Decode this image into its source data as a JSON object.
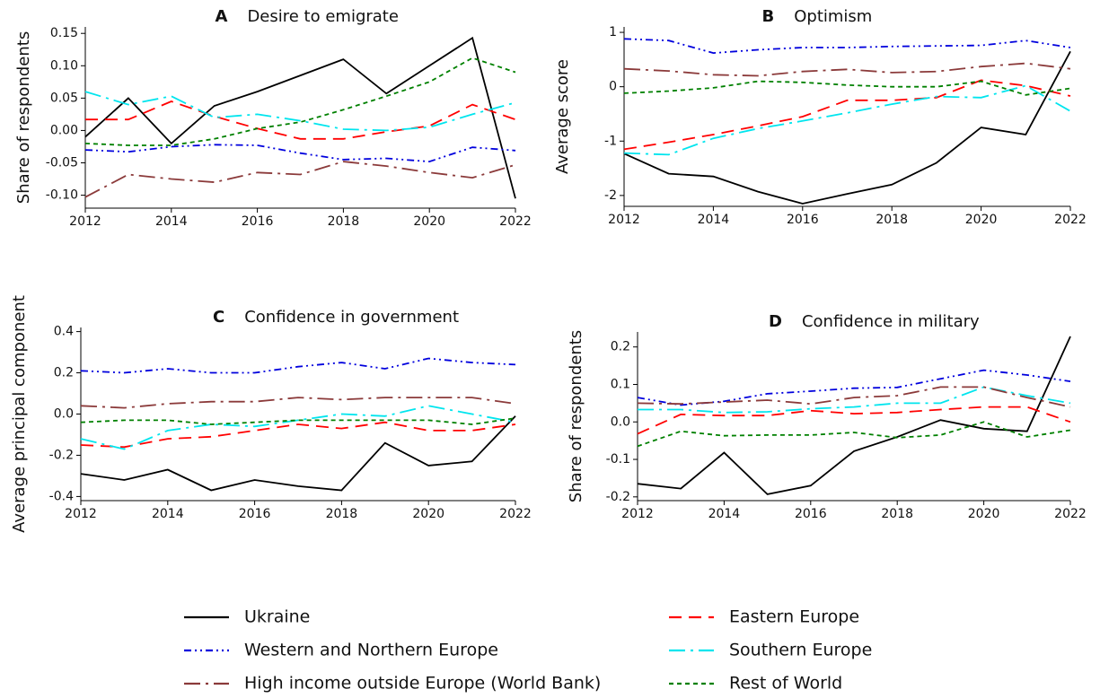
{
  "chart_data": [
    {
      "type": "line",
      "label": "A",
      "title": "Desire to emigrate",
      "ylabel": "Share of respondents",
      "x": [
        2012,
        2013,
        2014,
        2015,
        2016,
        2017,
        2018,
        2019,
        2020,
        2021,
        2022
      ],
      "xlim": [
        2012,
        2022
      ],
      "xticks": [
        2012,
        2014,
        2016,
        2018,
        2020,
        2022
      ],
      "ylim": [
        -0.12,
        0.16
      ],
      "yticks": [
        {
          "value": -0.1,
          "label": "-0.10"
        },
        -0.05,
        {
          "value": 0,
          "label": "0.00"
        },
        0.05,
        {
          "value": 0.1,
          "label": "0.10"
        },
        0.15
      ],
      "series": [
        {
          "name": "Ukraine",
          "color": "#000000",
          "dash": "solid",
          "values": [
            -0.01,
            0.05,
            -0.02,
            0.038,
            0.06,
            0.085,
            0.11,
            0.057,
            0.1,
            0.143,
            -0.105
          ]
        },
        {
          "name": "Eastern Europe",
          "color": "#ff0000",
          "dash": "dashed",
          "values": [
            0.017,
            0.017,
            0.045,
            0.022,
            0.003,
            -0.013,
            -0.013,
            -0.002,
            0.007,
            0.04,
            0.017
          ]
        },
        {
          "name": "Western and Northern Europe",
          "color": "#0000dd",
          "dash": "dashdotdot",
          "values": [
            -0.03,
            -0.033,
            -0.025,
            -0.022,
            -0.023,
            -0.035,
            -0.045,
            -0.043,
            -0.048,
            -0.026,
            -0.031
          ]
        },
        {
          "name": "Southern Europe",
          "color": "#00e5ee",
          "dash": "longdashdot",
          "values": [
            0.06,
            0.04,
            0.053,
            0.02,
            0.025,
            0.015,
            0.002,
            0,
            0.005,
            0.025,
            0.043
          ]
        },
        {
          "name": "High income outside Europe (World Bank)",
          "color": "#8b3a3a",
          "dash": "longdashdot",
          "values": [
            -0.103,
            -0.068,
            -0.075,
            -0.08,
            -0.065,
            -0.068,
            -0.048,
            -0.055,
            -0.065,
            -0.073,
            -0.053
          ]
        },
        {
          "name": "Rest of World",
          "color": "#008000",
          "dash": "dotted",
          "values": [
            -0.02,
            -0.023,
            -0.023,
            -0.013,
            0.003,
            0.013,
            0.032,
            0.053,
            0.075,
            0.112,
            0.09
          ]
        }
      ]
    },
    {
      "type": "line",
      "label": "B",
      "title": "Optimism",
      "ylabel": "Average score",
      "x": [
        2012,
        2013,
        2014,
        2015,
        2016,
        2017,
        2018,
        2019,
        2020,
        2021,
        2022
      ],
      "xlim": [
        2012,
        2022
      ],
      "xticks": [
        2012,
        2014,
        2016,
        2018,
        2020,
        2022
      ],
      "ylim": [
        -2.2,
        1.1
      ],
      "yticks": [
        -2,
        -1,
        0,
        1
      ],
      "series": [
        {
          "name": "Ukraine",
          "color": "#000000",
          "dash": "solid",
          "values": [
            -1.23,
            -1.6,
            -1.65,
            -1.93,
            -2.15,
            -1.97,
            -1.8,
            -1.4,
            -0.75,
            -0.88,
            0.65
          ]
        },
        {
          "name": "Eastern Europe",
          "color": "#ff0000",
          "dash": "dashed",
          "values": [
            -1.15,
            -1.02,
            -0.88,
            -0.72,
            -0.55,
            -0.25,
            -0.25,
            -0.2,
            0.12,
            0.02,
            -0.17
          ]
        },
        {
          "name": "Western and Northern Europe",
          "color": "#0000dd",
          "dash": "dashdotdot",
          "values": [
            0.88,
            0.85,
            0.62,
            0.68,
            0.72,
            0.72,
            0.74,
            0.75,
            0.76,
            0.85,
            0.72
          ]
        },
        {
          "name": "Southern Europe",
          "color": "#00e5ee",
          "dash": "longdashdot",
          "values": [
            -1.22,
            -1.25,
            -0.95,
            -0.77,
            -0.63,
            -0.48,
            -0.32,
            -0.18,
            -0.2,
            0.02,
            -0.45
          ]
        },
        {
          "name": "High income outside Europe (World Bank)",
          "color": "#8b3a3a",
          "dash": "longdashdot",
          "values": [
            0.33,
            0.29,
            0.22,
            0.2,
            0.28,
            0.32,
            0.26,
            0.28,
            0.37,
            0.43,
            0.33
          ]
        },
        {
          "name": "Rest of World",
          "color": "#008000",
          "dash": "dotted",
          "values": [
            -0.12,
            -0.08,
            -0.02,
            0.1,
            0.08,
            0.03,
            0,
            0,
            0.1,
            -0.15,
            -0.03
          ]
        }
      ]
    },
    {
      "type": "line",
      "label": "C",
      "title": "Confidence in government",
      "ylabel": "Average principal component",
      "x": [
        2012,
        2013,
        2014,
        2015,
        2016,
        2017,
        2018,
        2019,
        2020,
        2021,
        2022
      ],
      "xlim": [
        2012,
        2022
      ],
      "xticks": [
        2012,
        2014,
        2016,
        2018,
        2020,
        2022
      ],
      "ylim": [
        -0.42,
        0.42
      ],
      "yticks": [
        -0.4,
        -0.2,
        {
          "value": 0,
          "label": "0.0"
        },
        0.2,
        0.4
      ],
      "series": [
        {
          "name": "Ukraine",
          "color": "#000000",
          "dash": "solid",
          "values": [
            -0.29,
            -0.32,
            -0.27,
            -0.37,
            -0.32,
            -0.35,
            -0.37,
            -0.14,
            -0.25,
            -0.23,
            -0.01
          ]
        },
        {
          "name": "Eastern Europe",
          "color": "#ff0000",
          "dash": "dashed",
          "values": [
            -0.15,
            -0.16,
            -0.12,
            -0.11,
            -0.08,
            -0.05,
            -0.07,
            -0.04,
            -0.08,
            -0.08,
            -0.05
          ]
        },
        {
          "name": "Western and Northern Europe",
          "color": "#0000dd",
          "dash": "dashdotdot",
          "values": [
            0.21,
            0.2,
            0.22,
            0.2,
            0.2,
            0.23,
            0.25,
            0.22,
            0.27,
            0.25,
            0.24
          ]
        },
        {
          "name": "Southern Europe",
          "color": "#00e5ee",
          "dash": "longdashdot",
          "values": [
            -0.12,
            -0.17,
            -0.08,
            -0.05,
            -0.06,
            -0.03,
            0,
            -0.01,
            0.04,
            0,
            -0.04
          ]
        },
        {
          "name": "High income outside Europe (World Bank)",
          "color": "#8b3a3a",
          "dash": "longdashdot",
          "values": [
            0.04,
            0.03,
            0.05,
            0.06,
            0.06,
            0.08,
            0.07,
            0.08,
            0.08,
            0.08,
            0.05
          ]
        },
        {
          "name": "Rest of World",
          "color": "#008000",
          "dash": "dotted",
          "values": [
            -0.04,
            -0.03,
            -0.03,
            -0.05,
            -0.04,
            -0.03,
            -0.03,
            -0.03,
            -0.03,
            -0.05,
            -0.02
          ]
        }
      ]
    },
    {
      "type": "line",
      "label": "D",
      "title": "Confidence in military",
      "ylabel": "Share of respondents",
      "x": [
        2012,
        2013,
        2014,
        2015,
        2016,
        2017,
        2018,
        2019,
        2020,
        2021,
        2022
      ],
      "xlim": [
        2012,
        2022
      ],
      "xticks": [
        2012,
        2014,
        2016,
        2018,
        2020,
        2022
      ],
      "ylim": [
        -0.21,
        0.24
      ],
      "yticks": [
        -0.2,
        -0.1,
        {
          "value": 0,
          "label": "0.0"
        },
        0.1,
        0.2
      ],
      "series": [
        {
          "name": "Ukraine",
          "color": "#000000",
          "dash": "solid",
          "values": [
            -0.165,
            -0.178,
            -0.082,
            -0.193,
            -0.17,
            -0.078,
            -0.04,
            0.005,
            -0.018,
            -0.025,
            0.228
          ]
        },
        {
          "name": "Eastern Europe",
          "color": "#ff0000",
          "dash": "dashed",
          "values": [
            -0.032,
            0.02,
            0.017,
            0.017,
            0.03,
            0.022,
            0.025,
            0.033,
            0.04,
            0.04,
            0
          ]
        },
        {
          "name": "Western and Northern Europe",
          "color": "#0000dd",
          "dash": "dashdotdot",
          "values": [
            0.065,
            0.045,
            0.055,
            0.075,
            0.082,
            0.09,
            0.092,
            0.115,
            0.138,
            0.125,
            0.108
          ]
        },
        {
          "name": "Southern Europe",
          "color": "#00e5ee",
          "dash": "longdashdot",
          "values": [
            0.033,
            0.033,
            0.025,
            0.027,
            0.035,
            0.04,
            0.05,
            0.05,
            0.093,
            0.07,
            0.05
          ]
        },
        {
          "name": "High income outside Europe (World Bank)",
          "color": "#8b3a3a",
          "dash": "longdashdot",
          "values": [
            0.05,
            0.048,
            0.053,
            0.058,
            0.048,
            0.065,
            0.07,
            0.093,
            0.093,
            0.065,
            0.04
          ]
        },
        {
          "name": "Rest of World",
          "color": "#008000",
          "dash": "dotted",
          "values": [
            -0.065,
            -0.025,
            -0.037,
            -0.035,
            -0.035,
            -0.028,
            -0.042,
            -0.035,
            0,
            -0.04,
            -0.022
          ]
        }
      ]
    }
  ]
}
